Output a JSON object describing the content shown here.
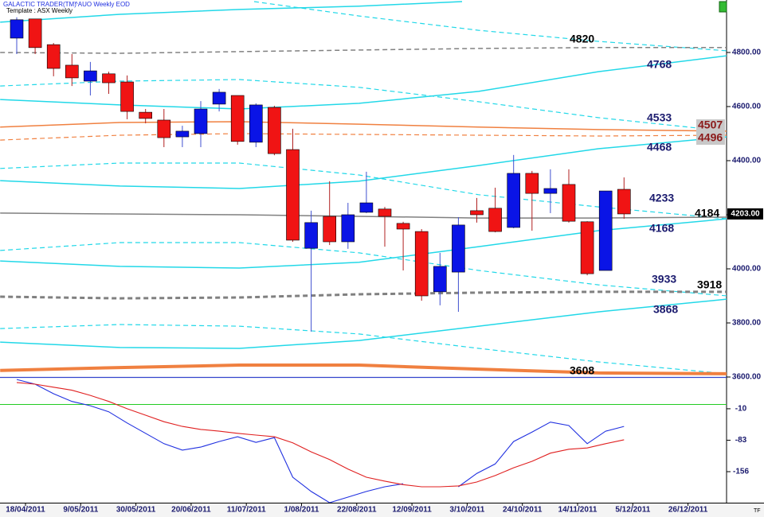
{
  "chart_data": [
    {
      "type": "candlestick",
      "title": "GALACTIC TRADER(TM)",
      "subtitle": "^AUO Weekly EOD",
      "template": "Template : ASX Weekly",
      "corner_label": "TF",
      "categories": [
        "18/04/2011",
        null,
        null,
        "9/05/2011",
        null,
        null,
        "30/05/2011",
        null,
        null,
        "20/06/2011",
        null,
        null,
        "11/07/2011",
        null,
        null,
        "1/08/2011",
        null,
        null,
        "22/08/2011",
        null,
        null,
        "12/09/2011",
        null,
        null,
        "3/10/2011",
        null,
        null,
        "24/10/2011",
        null,
        null,
        "14/11/2011",
        null,
        null,
        "5/12/2011",
        null,
        null,
        "26/12/2011"
      ],
      "open": [
        4853,
        4924,
        4829,
        4753,
        4694,
        4721,
        4691,
        4579,
        4550,
        4488,
        4500,
        4609,
        4641,
        4468,
        4597,
        4441,
        4076,
        4194,
        4100,
        4209,
        4221,
        4168,
        4138,
        3915,
        3988,
        4215,
        4224,
        4153,
        4353,
        4279,
        4312,
        4174,
        3994,
        4294,
        null,
        null,
        null
      ],
      "high": [
        4930,
        4924,
        4835,
        4794,
        4765,
        4729,
        4715,
        4591,
        4591,
        4529,
        4620,
        4665,
        4641,
        4612,
        4603,
        4518,
        4215,
        4324,
        4244,
        4359,
        4229,
        4174,
        4147,
        4059,
        4191,
        4262,
        4300,
        4421,
        4362,
        4368,
        4368,
        4176,
        4288,
        4338,
        null,
        null,
        null
      ],
      "low": [
        4794,
        4794,
        4712,
        4676,
        4641,
        4647,
        4553,
        4538,
        4450,
        4450,
        4450,
        4582,
        4459,
        4450,
        4420,
        4100,
        3768,
        4088,
        4074,
        4206,
        4082,
        3994,
        3882,
        3865,
        3841,
        4171,
        4135,
        4150,
        4141,
        4206,
        4171,
        3976,
        3994,
        4185,
        null,
        null,
        null
      ],
      "close": [
        4921,
        4818,
        4741,
        4706,
        4732,
        4688,
        4582,
        4556,
        4485,
        4509,
        4591,
        4653,
        4471,
        4606,
        4426,
        4106,
        4171,
        4100,
        4200,
        4244,
        4194,
        4147,
        3900,
        4009,
        4162,
        4200,
        4138,
        4353,
        4279,
        4297,
        4176,
        3982,
        4288,
        4203,
        null,
        null,
        null
      ],
      "up_color": "#0a14e6",
      "down_color": "#f01414",
      "ylim": [
        3600,
        4994
      ],
      "yticks": [
        {
          "value": 3600,
          "label": "3600.00"
        },
        {
          "value": 3800,
          "label": "3800.00"
        },
        {
          "value": 4000,
          "label": "4000.00"
        },
        {
          "value": 4200,
          "label": "4200.00"
        },
        {
          "value": 4400,
          "label": "4400.00"
        },
        {
          "value": 4600,
          "label": "4600.00"
        },
        {
          "value": 4800,
          "label": "4800.00"
        }
      ],
      "last_price": {
        "value": 4203,
        "label": "4203.00"
      },
      "curves": [
        {
          "color": "#22d8e8",
          "dash": false,
          "width": 1.5,
          "x": [
            -0.9,
            5.6,
            12.1,
            18.6,
            24.2
          ],
          "y": [
            4912,
            4941,
            4959,
            4971,
            4988
          ]
        },
        {
          "color": "#22d8e8",
          "dash": true,
          "width": 1.2,
          "x": [
            12.9,
            18.6,
            25.1,
            31.6,
            38.6
          ],
          "y": [
            4988,
            4935,
            4882,
            4841,
            4806
          ]
        },
        {
          "color": "#808080",
          "dash": true,
          "width": 1.5,
          "x": [
            -0.9,
            5.6,
            12.1,
            18.6,
            25.1,
            31.6,
            38.6
          ],
          "y": [
            4800,
            4797,
            4803,
            4809,
            4815,
            4818,
            4818
          ]
        },
        {
          "color": "#22d8e8",
          "dash": true,
          "width": 1.2,
          "x": [
            -0.9,
            5.6,
            12.1,
            18.6,
            25.1,
            31.6,
            38.6
          ],
          "y": [
            4676,
            4694,
            4700,
            4671,
            4618,
            4559,
            4509
          ]
        },
        {
          "color": "#22d8e8",
          "dash": false,
          "width": 1.5,
          "x": [
            -0.9,
            5.6,
            12.1,
            18.6,
            25.1,
            31.6,
            38.6
          ],
          "y": [
            4626,
            4606,
            4591,
            4612,
            4656,
            4729,
            4788
          ]
        },
        {
          "color": "#f08040",
          "dash": false,
          "width": 1.5,
          "x": [
            -0.9,
            5.6,
            12.1,
            18.6,
            25.1,
            31.6,
            38.6
          ],
          "y": [
            4524,
            4541,
            4544,
            4535,
            4524,
            4515,
            4509
          ]
        },
        {
          "color": "#f08040",
          "dash": true,
          "width": 1.2,
          "x": [
            -0.9,
            5.6,
            12.1,
            18.6,
            25.1,
            31.6,
            38.6
          ],
          "y": [
            4476,
            4494,
            4500,
            4497,
            4494,
            4491,
            4494
          ]
        },
        {
          "color": "#22d8e8",
          "dash": false,
          "width": 1.5,
          "x": [
            -0.9,
            5.6,
            12.1,
            18.6,
            25.1,
            31.6,
            38.6
          ],
          "y": [
            4326,
            4306,
            4297,
            4324,
            4382,
            4444,
            4488
          ]
        },
        {
          "color": "#22d8e8",
          "dash": true,
          "width": 1.2,
          "x": [
            -0.9,
            5.6,
            12.1,
            18.6,
            25.1,
            31.6,
            38.6
          ],
          "y": [
            4371,
            4391,
            4391,
            4347,
            4274,
            4229,
            4185
          ]
        },
        {
          "color": "#808080",
          "dash": false,
          "width": 1.5,
          "x": [
            -0.9,
            5.6,
            12.1,
            18.6,
            25.1,
            31.6,
            38.6
          ],
          "y": [
            4206,
            4203,
            4200,
            4194,
            4188,
            4188,
            4191
          ]
        },
        {
          "color": "#22d8e8",
          "dash": true,
          "width": 1.2,
          "x": [
            -0.9,
            5.6,
            12.1,
            18.6,
            25.1,
            31.6,
            38.6
          ],
          "y": [
            4068,
            4097,
            4097,
            4059,
            3994,
            3941,
            3900
          ]
        },
        {
          "color": "#22d8e8",
          "dash": false,
          "width": 1.5,
          "x": [
            -0.9,
            5.6,
            12.1,
            18.6,
            25.1,
            31.6,
            38.6
          ],
          "y": [
            4029,
            4009,
            4003,
            4024,
            4082,
            4141,
            4185
          ]
        },
        {
          "color": "#808080",
          "dash": true,
          "width": 3,
          "x": [
            -0.9,
            5.6,
            12.1,
            18.6,
            25.1,
            31.6,
            38.6
          ],
          "y": [
            3897,
            3891,
            3894,
            3906,
            3912,
            3915,
            3915
          ]
        },
        {
          "color": "#22d8e8",
          "dash": true,
          "width": 1.2,
          "x": [
            -0.9,
            5.6,
            12.1,
            18.6,
            25.1,
            31.6,
            38.6
          ],
          "y": [
            3779,
            3794,
            3788,
            3759,
            3706,
            3656,
            3612
          ]
        },
        {
          "color": "#22d8e8",
          "dash": false,
          "width": 1.5,
          "x": [
            -0.9,
            5.6,
            12.1,
            18.6,
            25.1,
            31.6,
            38.6
          ],
          "y": [
            3729,
            3709,
            3706,
            3735,
            3788,
            3841,
            3888
          ]
        },
        {
          "color": "#f08040",
          "dash": false,
          "width": 4,
          "x": [
            -0.9,
            5.6,
            12.1,
            18.6,
            25.1,
            31.6,
            38.6
          ],
          "y": [
            3624,
            3635,
            3644,
            3644,
            3629,
            3615,
            3612
          ]
        }
      ],
      "level_labels": {
        "values": [
          4820,
          4768,
          4533,
          4507,
          4496,
          4468,
          4233,
          4184,
          4168,
          3933,
          3918,
          3868,
          3608
        ],
        "colors": [
          "#000000",
          "#1a1a6e",
          "#1a1a6e",
          "#8b1a1a",
          "#8b1a1a",
          "#1a1a6e",
          "#1a1a6e",
          "#000000",
          "#1a1a6e",
          "#1a1a6e",
          "#000000",
          "#1a1a6e",
          "#000000"
        ],
        "boxed": [
          false,
          false,
          false,
          true,
          true,
          false,
          false,
          false,
          false,
          false,
          false,
          false,
          false
        ]
      }
    },
    {
      "type": "line",
      "series": [
        {
          "color": "#2030e0",
          "values": [
            58,
            47,
            25,
            7,
            -3,
            -17,
            -43,
            -67,
            -91,
            -106,
            -99,
            -86,
            -75,
            -88,
            -77,
            -169,
            -202,
            -228,
            -215,
            -202,
            -191,
            -184,
            null,
            null,
            -191,
            -160,
            -138,
            -86,
            -64,
            -41,
            -49,
            -91,
            -62,
            -51,
            null,
            null,
            null
          ]
        },
        {
          "color": "#e02020",
          "values": [
            51,
            47,
            40,
            33,
            21,
            7,
            -10,
            -25,
            -40,
            -51,
            -58,
            -62,
            -67,
            -71,
            -75,
            -89,
            -110,
            -128,
            -150,
            -169,
            -178,
            -186,
            -191,
            -191,
            -189,
            -180,
            -165,
            -147,
            -132,
            -113,
            -104,
            -101,
            -91,
            -82,
            null,
            null,
            null
          ]
        }
      ],
      "ylim": [
        -228,
        60
      ],
      "yticks": [
        -10,
        -83,
        -156
      ],
      "reference_line": 0,
      "reference_color": "#22cc22"
    }
  ]
}
